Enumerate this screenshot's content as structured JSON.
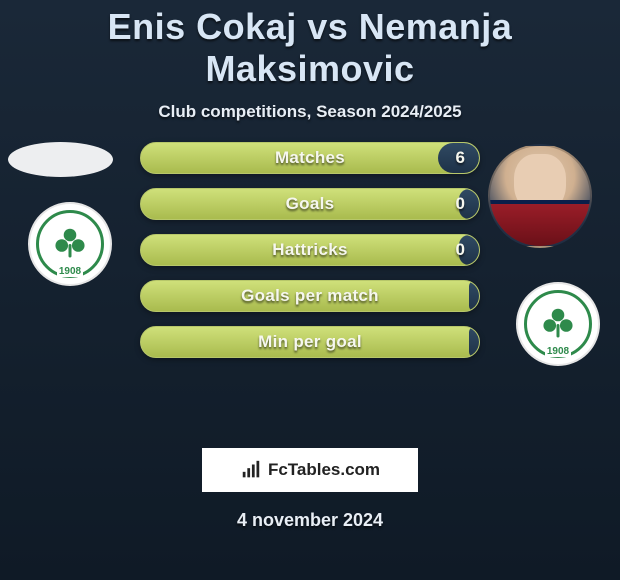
{
  "header": {
    "title": "Enis Cokaj vs Nemanja Maksimovic",
    "subtitle": "Club competitions, Season 2024/2025",
    "title_color": "#d8e6f5",
    "title_fontsize": 36,
    "subtitle_fontsize": 17
  },
  "background": {
    "gradient_top": "#1a2838",
    "gradient_bottom": "#0f1a26"
  },
  "players": {
    "left": {
      "name": "Enis Cokaj",
      "avatar_shape": "ellipse-placeholder",
      "club": "Panathinaikos",
      "club_year": "1908",
      "club_color": "#2e8a4b"
    },
    "right": {
      "name": "Nemanja Maksimovic",
      "avatar_shape": "photo",
      "club": "Panathinaikos",
      "club_year": "1908",
      "club_color": "#2e8a4b"
    }
  },
  "bars": {
    "bar_bg_top": "#cfe07a",
    "bar_bg_bottom": "#a9bb4e",
    "bar_border": "#b7c76a",
    "fill_top": "#304a63",
    "fill_bottom": "#1e3248",
    "label_color": "#f6f7ef",
    "rows": [
      {
        "label": "Matches",
        "right_value": "6",
        "right_fill_pct": 12
      },
      {
        "label": "Goals",
        "right_value": "0",
        "right_fill_pct": 6
      },
      {
        "label": "Hattricks",
        "right_value": "0",
        "right_fill_pct": 6
      },
      {
        "label": "Goals per match",
        "right_value": "",
        "right_fill_pct": 3
      },
      {
        "label": "Min per goal",
        "right_value": "",
        "right_fill_pct": 3
      }
    ]
  },
  "footer": {
    "brand": "FcTables.com",
    "date": "4 november 2024",
    "box_bg": "#ffffff",
    "box_text_color": "#222222"
  }
}
